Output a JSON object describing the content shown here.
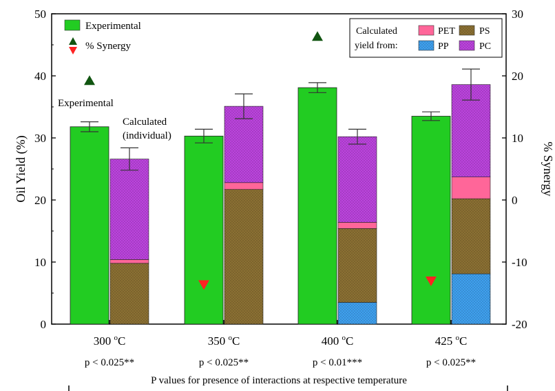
{
  "chart_data": {
    "type": "bar",
    "categories": [
      "300 °C",
      "350 °C",
      "400 °C",
      "425 °C"
    ],
    "p_values": [
      "p < 0.025**",
      "p < 0.025**",
      "p < 0.01***",
      "p < 0.025**"
    ],
    "xlabel": "P values for presence of interactions at respective temperature",
    "ylabel": "Oil Yield  (%)",
    "ylabel_right": "% Synergy",
    "ylim": [
      0,
      50
    ],
    "ylim_right": [
      -20,
      30
    ],
    "yticks": [
      0,
      10,
      20,
      30,
      40,
      50
    ],
    "yticks_right": [
      -20,
      -10,
      0,
      10,
      20,
      30
    ],
    "experimental": {
      "name": "Experimental",
      "values": [
        31.8,
        30.3,
        38.1,
        33.5
      ],
      "errors": [
        0.8,
        1.1,
        0.8,
        0.7
      ],
      "color": "#22cc22"
    },
    "calculated_stack": [
      {
        "name": "PP",
        "values": [
          0,
          0,
          3.5,
          8.1
        ],
        "color": "#3fa0ee"
      },
      {
        "name": "PS",
        "values": [
          9.8,
          21.7,
          11.9,
          12.1
        ],
        "color": "#8b7033"
      },
      {
        "name": "PET",
        "values": [
          0.6,
          1.1,
          1.0,
          3.5
        ],
        "color": "#ff6699"
      },
      {
        "name": "PC",
        "values": [
          16.2,
          12.3,
          13.8,
          14.9
        ],
        "color": "#bb44dd"
      }
    ],
    "calculated_errors": [
      1.8,
      2.0,
      1.2,
      2.5
    ],
    "synergy": {
      "name": "% Synergy",
      "values": [
        19.2,
        -13.6,
        26.3,
        -13.0
      ],
      "positive_color": "#115511",
      "negative_color": "#ff2222"
    },
    "legend": {
      "experimental_label": "Experimental",
      "synergy_label": "% Synergy",
      "calculated_title_line1": "Calculated",
      "calculated_title_line2": "yield from:",
      "pet": "PET",
      "ps": "PS",
      "pp": "PP",
      "pc": "PC"
    },
    "annotations": {
      "experimental": "Experimental",
      "calculated_line1": "Calculated",
      "calculated_line2": "(individual)"
    },
    "degree_symbol": "o",
    "temp_values": [
      "300",
      "350",
      "400",
      "425"
    ],
    "temp_unit": "C"
  }
}
